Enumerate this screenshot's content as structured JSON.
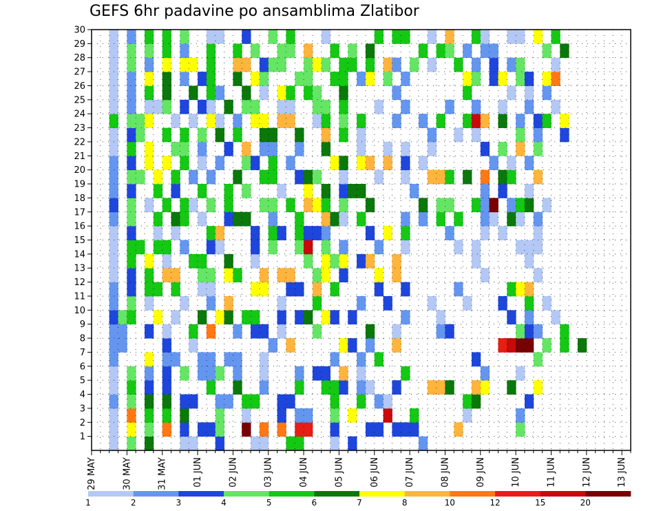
{
  "chart_data": {
    "type": "heatmap",
    "title": "GEFS 6hr padavine po ansamblima Zlatibor",
    "xlabel": "",
    "ylabel": "",
    "x_ticks": [
      "29 MAY",
      "30 MAY",
      "31 MAY",
      "01 JUN",
      "02 JUN",
      "03 JUN",
      "04 JUN",
      "05 JUN",
      "06 JUN",
      "07 JUN",
      "08 JUN",
      "09 JUN",
      "10 JUN",
      "11 JUN",
      "12 JUN",
      "13 JUN"
    ],
    "x_start": "2023-05-29T00:00",
    "step_hours": 6,
    "n_steps": 61,
    "y_ticks": [
      1,
      2,
      3,
      4,
      5,
      6,
      7,
      8,
      9,
      10,
      11,
      12,
      13,
      14,
      15,
      16,
      17,
      18,
      19,
      20,
      21,
      22,
      23,
      24,
      25,
      26,
      27,
      28,
      29,
      30
    ],
    "ylim": [
      0,
      30
    ],
    "grid": "dotted",
    "legend": "colorbar-bottom",
    "units_note": "",
    "colorbar": {
      "levels": [
        1,
        2,
        3,
        4,
        5,
        6,
        7,
        8,
        10,
        12,
        15,
        20
      ],
      "labels": [
        "1",
        "2",
        "3",
        "4",
        "5",
        "6",
        "7",
        "8",
        "10",
        "12",
        "15",
        "20"
      ],
      "colors": [
        "#b4c8f5",
        "#6496f0",
        "#1e46dc",
        "#64e664",
        "#14c814",
        "#0a780a",
        "#ffff00",
        "#ffb43c",
        "#ff7814",
        "#e61e14",
        "#c80a0a",
        "#780000"
      ]
    },
    "rows": {
      "1": "..a.d.f...aa..c...aa..ee...a.c.......b...............................",
      "2": "..a.g.d.i.c.ccd..l.i.i.jj..c...cc.ccc....h......d...",
      "3": "..a.i.e.e.f...d..a...c.bb..d.g...k..e.....a.....b",
      "4": "..b.d.f.f.cc..bb.ee..cc....e..e.ba........ef.....c",
      "5": "..a.e.c.c....e..f..b...e..eec.ba..c...hhf..hg..f..g",
      "6": "..a.d.b.c.d.bbd.b..a...b.cc.h.a....e........b...a",
      "7": "..b...g.bb..bb.bb..a.......b..b.e..........c......d",
      "8": "..bb....c..a........b.h.....gc.b..h...........jkll.d.e.f",
      "9": "..bb..c.a..e.i..b.cc.a...d.....f..a....bc.......dcb..e",
      "10": "..cde..g.a..f.gf.ee..c.cf.gc.c.....b...a.......c.b..a",
      "11": "..b.d.a...a..b.h.....a...e....b..c....a...a...c..e.a",
      "12": "..b.c.ee.e..aa....gg..cc.h.e....c..c.....b.....egh...",
      "13": "..a.c.e.hh..dd.ge..h.hh..dg.c...g.h.........a.....a",
      "14": "..a.e.g.a..ee..f..a.....d.gdg.ch..h........a.....a",
      "15": "..a.ee.ee.b..ca...c.d..dk.d.b...b..a.....a.a....aaa",
      "16": "..a.c..a.a...eh...c.ec.eccb....c.g.e....b...a.a...a",
      "17": "..b.d..e.fe.a..cff..b..e..hfa.e....b.b.e.e..ba.fa.b",
      "18": "..c.d.a.e.ea.d.e...dd.e.hge.d..f.....f.dd..ebl.bef.a",
      "19": "..b.c..e.c..e..e.d...a..g.f.cff.....b.......b.c..a",
      "20": "..b.dd.g.e.b.b..f..ee..cfd..a...a..a..hhe.f.i.fe..h",
      "21": "..b.c.g.g.e.a.b..dc.e.b....gf.gh.h.c.a.......b.a.b",
      "22": "..a.e.g..dd.b..c.h.bb..b..f...a..a.a..a.....c.d.h.d",
      "23": "..a.cd..e.e.d.f.e..ff..f..h.e.a.......b..a.a....d.b..c",
      "24": "..e.ddg..a.a.ga.b.gg.hh..ae.d.e...b..b.e..ekh.f.b.ce.g",
      "25": "..a.b.aad.c.ca.f.dd..aa..dd.e...a..b....b..b..a..b..a",
      "26": "..a.b.e.f..f.eb..f.a.ge.ed..f.....b.......e....a.a.b",
      "27": "..a.b.g.f.b.ce..f.gd...dd..ee.bg.d.b......gd.cg.dc.gi",
      "28": "..a.d.b.g.gg.e..hh.cdd..dgd.ee.e.hb.d.a..e.b.c.bd...a",
      "29": "..a.d.d.e.b..e..e.d..dd.h..e.d.f.....e.ed.b.bb.....d.f",
      "30": "..a.b.e.e.d..aa..c..d.e...a.....e.ee..a.h..ea..aa.g.e"
    }
  }
}
